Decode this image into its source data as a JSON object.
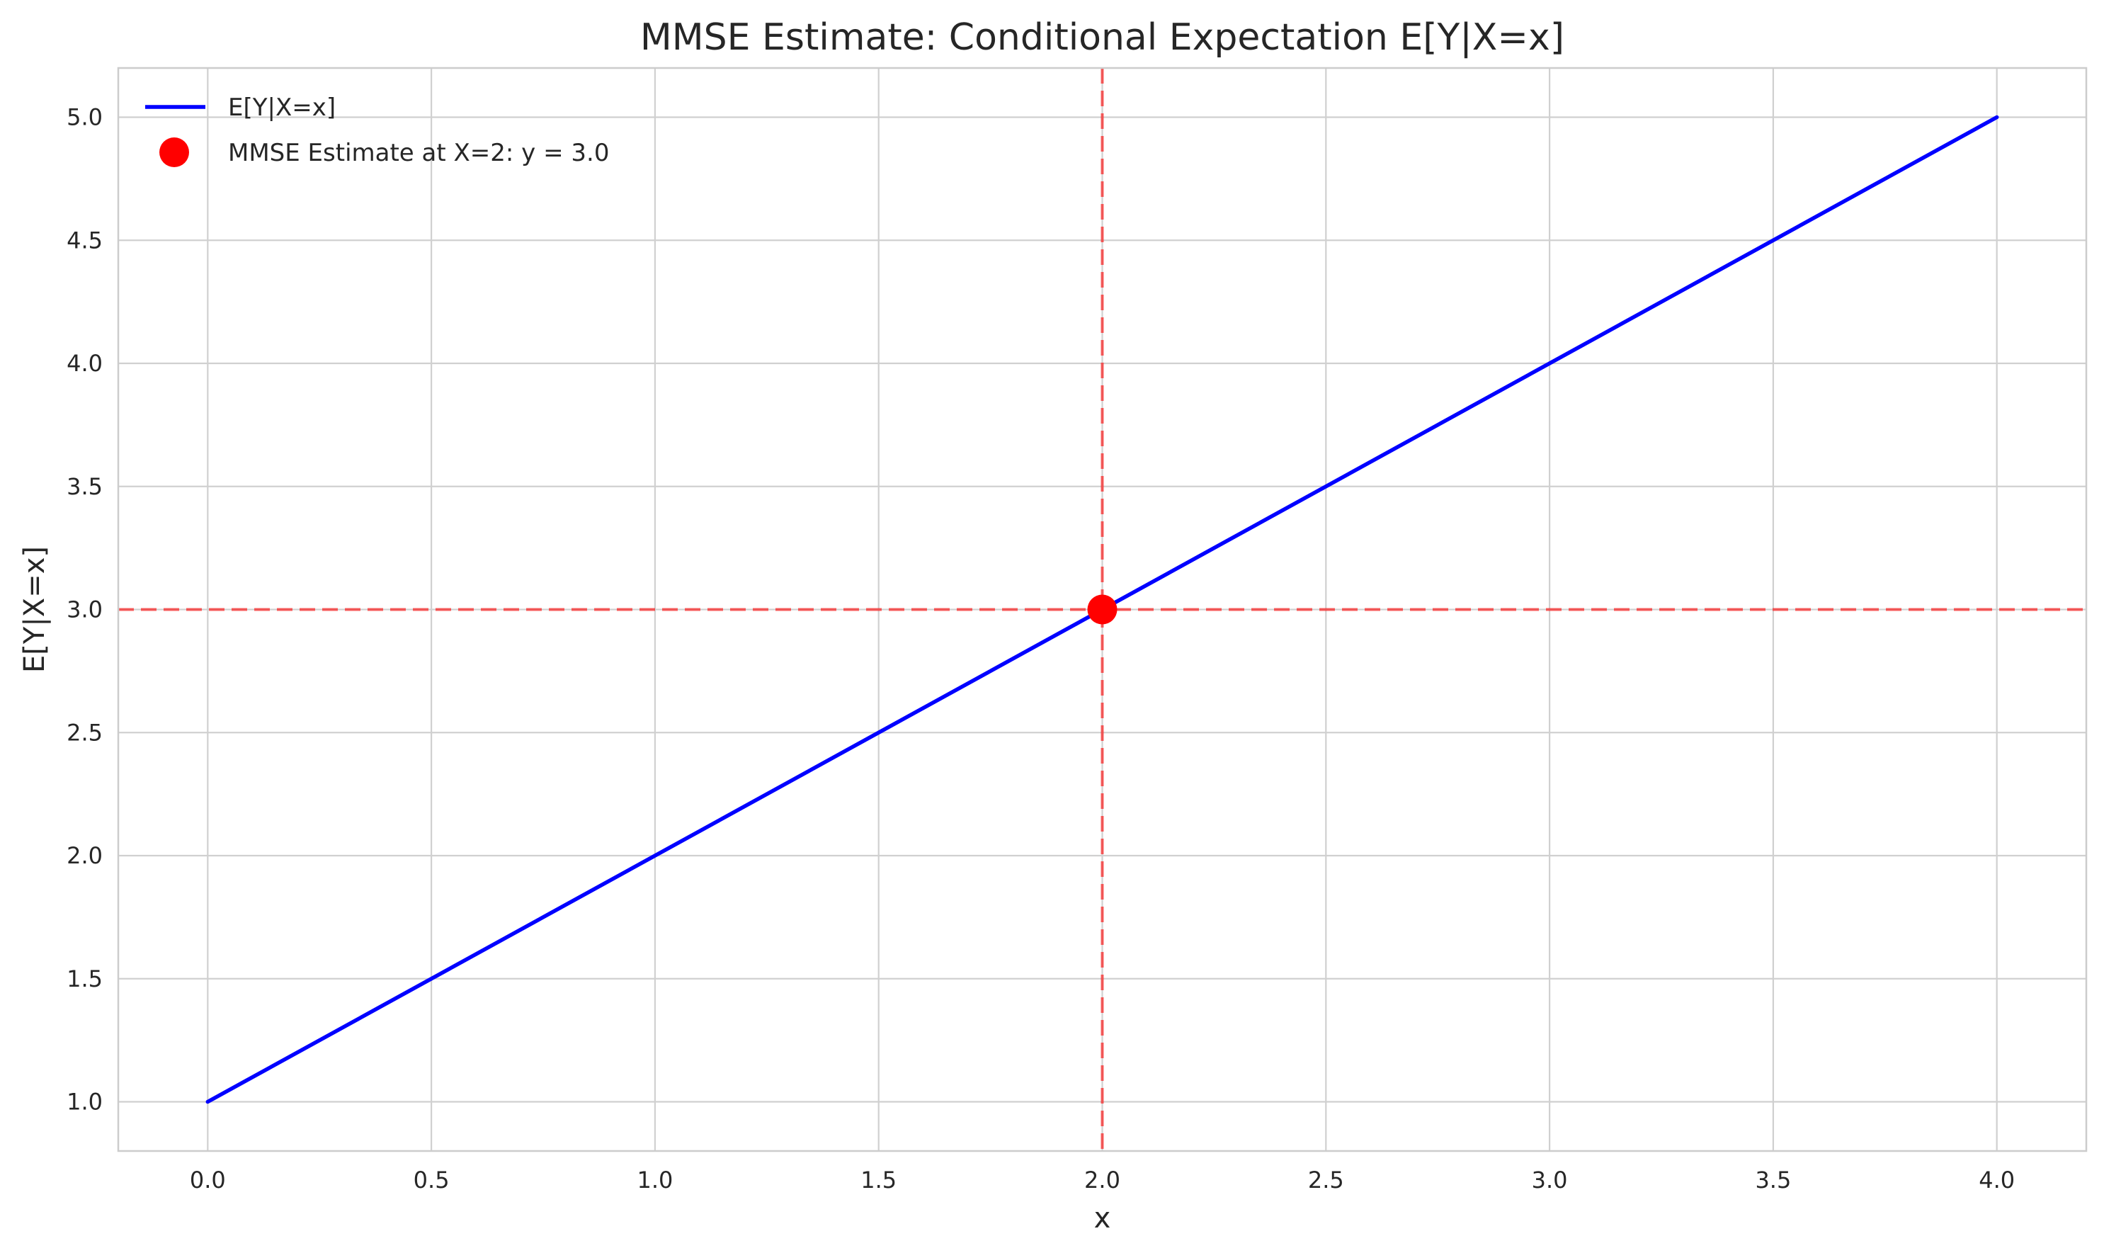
{
  "chart_data": {
    "type": "line",
    "title": "MMSE Estimate: Conditional Expectation E[Y|X=x]",
    "xlabel": "x",
    "ylabel": "E[Y|X=x]",
    "xlim": [
      -0.2,
      4.2
    ],
    "ylim": [
      0.8,
      5.2
    ],
    "xticks": [
      0.0,
      0.5,
      1.0,
      1.5,
      2.0,
      2.5,
      3.0,
      3.5,
      4.0
    ],
    "xtick_labels": [
      "0.0",
      "0.5",
      "1.0",
      "1.5",
      "2.0",
      "2.5",
      "3.0",
      "3.5",
      "4.0"
    ],
    "yticks": [
      1.0,
      1.5,
      2.0,
      2.5,
      3.0,
      3.5,
      4.0,
      4.5,
      5.0
    ],
    "ytick_labels": [
      "1.0",
      "1.5",
      "2.0",
      "2.5",
      "3.0",
      "3.5",
      "4.0",
      "4.5",
      "5.0"
    ],
    "grid": true,
    "legend_position": "top-left",
    "series": [
      {
        "name": "E[Y|X=x]",
        "type": "line",
        "color": "#0000ff",
        "x": [
          0.0,
          4.0
        ],
        "y": [
          1.0,
          5.0
        ]
      },
      {
        "name": "MMSE Estimate at X=2: y = 3.0",
        "type": "scatter",
        "color": "#ff0000",
        "x": [
          2.0
        ],
        "y": [
          3.0
        ]
      }
    ],
    "reference_lines": [
      {
        "orientation": "vertical",
        "value": 2.0,
        "color": "#ff0000",
        "style": "dashed"
      },
      {
        "orientation": "horizontal",
        "value": 3.0,
        "color": "#ff0000",
        "style": "dashed"
      }
    ]
  }
}
